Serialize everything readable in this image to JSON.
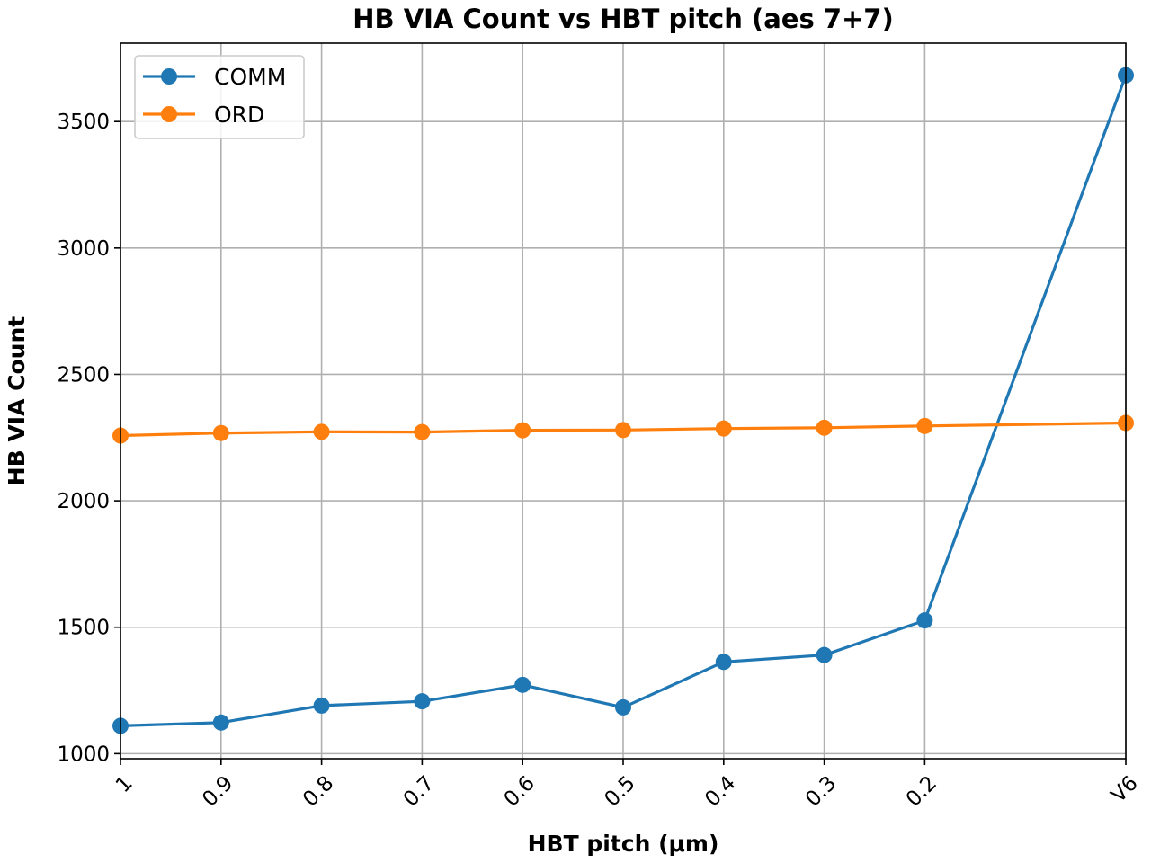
{
  "chart_data": {
    "type": "line",
    "title": "HB VIA Count vs HBT pitch (aes 7+7)",
    "xlabel": "HBT pitch (μm)",
    "ylabel": "HB VIA Count",
    "categories": [
      "1",
      "0.9",
      "0.8",
      "0.7",
      "0.6",
      "0.5",
      "0.4",
      "0.3",
      "0.2",
      "V6"
    ],
    "x_positions": [
      1,
      0.9,
      0.8,
      0.7,
      0.6,
      0.5,
      0.4,
      0.3,
      0.2,
      0
    ],
    "xlim": [
      1,
      0
    ],
    "ylim": [
      980,
      3810
    ],
    "yticks": [
      1000,
      1500,
      2000,
      2500,
      3000,
      3500
    ],
    "grid": true,
    "legend_position": "top-left",
    "series": [
      {
        "name": "COMM",
        "color": "#1f77b4",
        "values": [
          1110,
          1123,
          1190,
          1207,
          1272,
          1183,
          1363,
          1390,
          1527,
          3683
        ]
      },
      {
        "name": "ORD",
        "color": "#ff7f0e",
        "values": [
          2258,
          2268,
          2273,
          2272,
          2279,
          2280,
          2286,
          2289,
          2296,
          2308
        ]
      }
    ]
  }
}
